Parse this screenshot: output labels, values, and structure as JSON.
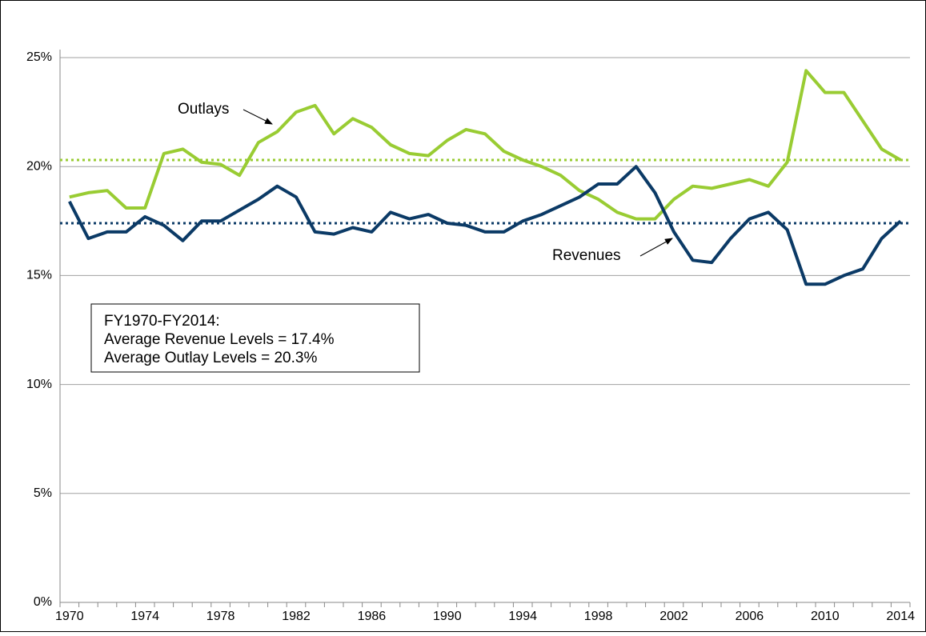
{
  "chart_data": {
    "type": "line",
    "categories": [
      "1970",
      null,
      null,
      null,
      "1974",
      null,
      null,
      null,
      "1978",
      null,
      null,
      null,
      "1982",
      null,
      null,
      null,
      "1986",
      null,
      null,
      null,
      "1990",
      null,
      null,
      null,
      "1994",
      null,
      null,
      null,
      "1998",
      null,
      null,
      null,
      "2002",
      null,
      null,
      null,
      "2006",
      null,
      null,
      null,
      "2010",
      null,
      null,
      null,
      "2014"
    ],
    "series": [
      {
        "name": "Outlays",
        "color": "#99cc33",
        "values": [
          18.6,
          18.8,
          18.9,
          18.1,
          18.1,
          20.6,
          20.8,
          20.2,
          20.1,
          19.6,
          21.1,
          21.6,
          22.5,
          22.8,
          21.5,
          22.2,
          21.8,
          21.0,
          20.6,
          20.5,
          21.2,
          21.7,
          21.5,
          20.7,
          20.3,
          20.0,
          19.6,
          18.9,
          18.5,
          17.9,
          17.6,
          17.6,
          18.5,
          19.1,
          19.0,
          19.2,
          19.4,
          19.1,
          20.2,
          24.4,
          23.4,
          23.4,
          22.1,
          20.8,
          20.3
        ]
      },
      {
        "name": "Revenues",
        "color": "#0b3a66",
        "values": [
          18.4,
          16.7,
          17.0,
          17.0,
          17.7,
          17.3,
          16.6,
          17.5,
          17.5,
          18.0,
          18.5,
          19.1,
          18.6,
          17.0,
          16.9,
          17.2,
          17.0,
          17.9,
          17.6,
          17.8,
          17.4,
          17.3,
          17.0,
          17.0,
          17.5,
          17.8,
          18.2,
          18.6,
          19.2,
          19.2,
          20.0,
          18.8,
          17.0,
          15.7,
          15.6,
          16.7,
          17.6,
          17.9,
          17.1,
          14.6,
          14.6,
          15.0,
          15.3,
          16.7,
          17.5
        ]
      }
    ],
    "reference_lines": [
      {
        "value": 20.3,
        "color": "#99cc33"
      },
      {
        "value": 17.4,
        "color": "#0b3a66"
      }
    ],
    "annotation": [
      "FY1970-FY2014:",
      "Average Revenue Levels = 17.4%",
      "Average Outlay Levels = 20.3%"
    ],
    "ylim": [
      0,
      25
    ],
    "yticks": [
      {
        "value": 0,
        "label": "0%"
      },
      {
        "value": 5,
        "label": "5%"
      },
      {
        "value": 10,
        "label": "10%"
      },
      {
        "value": 15,
        "label": "15%"
      },
      {
        "value": 20,
        "label": "20%"
      },
      {
        "value": 25,
        "label": "25%"
      }
    ],
    "grid": true
  }
}
